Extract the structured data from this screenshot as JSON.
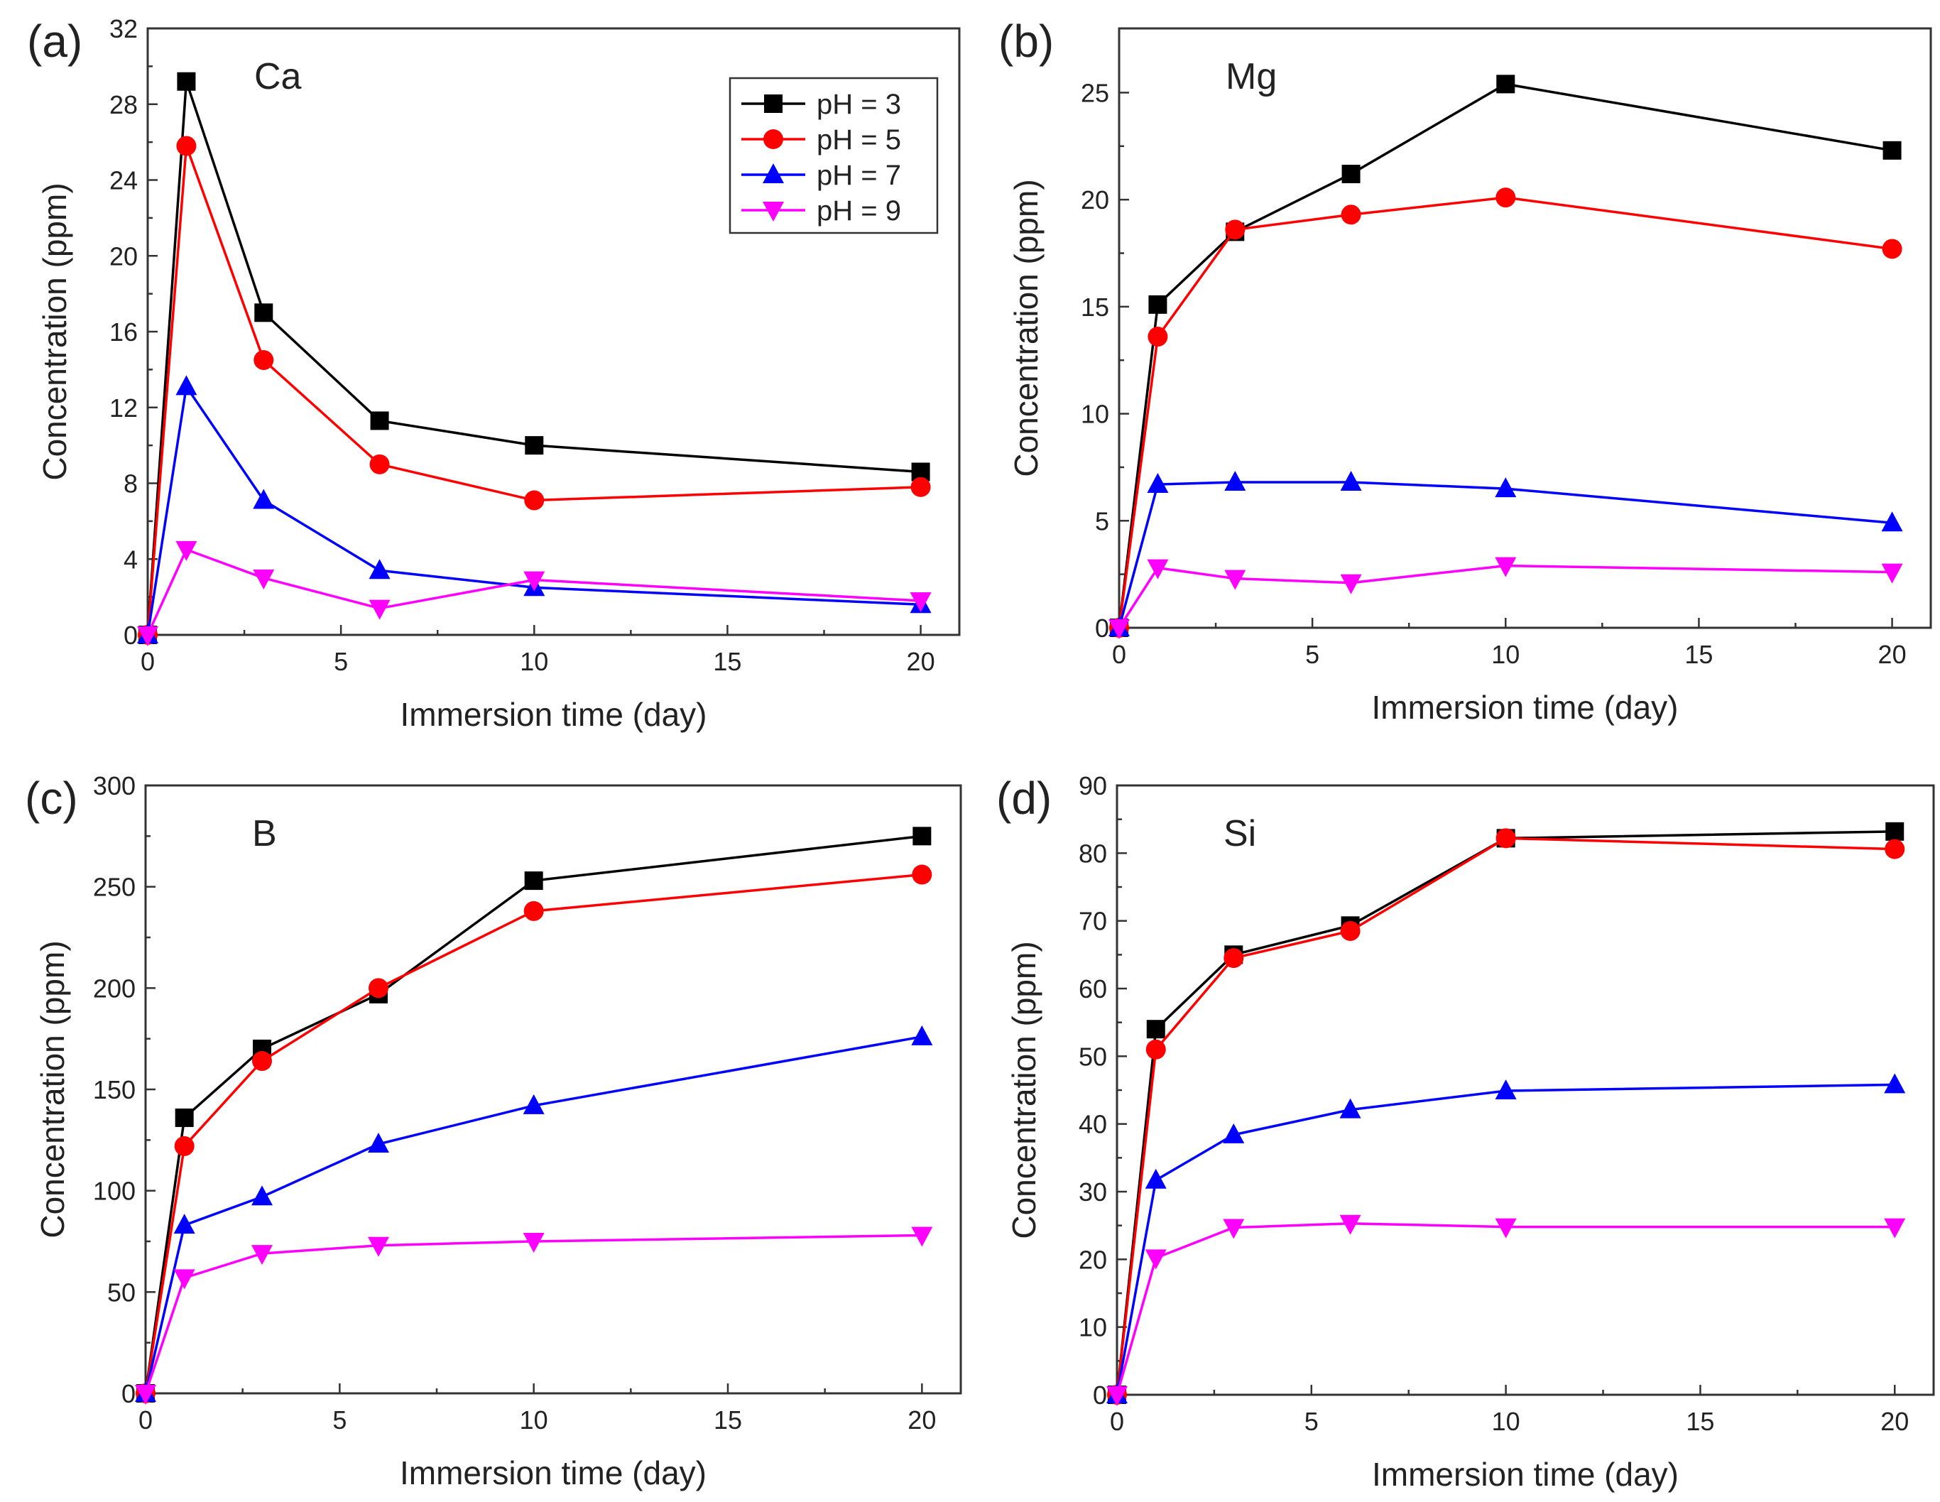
{
  "figure": {
    "legend": [
      {
        "label": "pH = 3"
      },
      {
        "label": "pH = 5"
      },
      {
        "label": "pH = 7"
      },
      {
        "label": "pH = 9"
      }
    ]
  },
  "series_styles": [
    {
      "name": "pH = 3",
      "color": "#000000",
      "marker": "square"
    },
    {
      "name": "pH = 5",
      "color": "#ff0000",
      "marker": "circle"
    },
    {
      "name": "pH = 7",
      "color": "#0000ff",
      "marker": "triangle-up"
    },
    {
      "name": "pH = 9",
      "color": "#ff00ff",
      "marker": "triangle-down"
    }
  ],
  "chart_data": [
    {
      "panel": "(a)",
      "element": "Ca",
      "type": "line",
      "xlabel": "Immersion time (day)",
      "ylabel": "Concentration (ppm)",
      "xlim": [
        0,
        21
      ],
      "ylim": [
        0,
        32
      ],
      "xticks": [
        0,
        5,
        10,
        15,
        20
      ],
      "yticks": [
        0,
        4,
        8,
        12,
        16,
        20,
        24,
        28,
        32
      ],
      "legend_position": "top-right",
      "x": [
        0,
        1,
        3,
        6,
        10,
        20
      ],
      "series": [
        {
          "name": "pH = 3",
          "values": [
            0,
            29.2,
            17.0,
            11.3,
            10.0,
            8.6
          ]
        },
        {
          "name": "pH = 5",
          "values": [
            0,
            25.8,
            14.5,
            9.0,
            7.1,
            7.8
          ]
        },
        {
          "name": "pH = 7",
          "values": [
            0,
            13.1,
            7.1,
            3.4,
            2.5,
            1.6
          ]
        },
        {
          "name": "pH = 9",
          "values": [
            0,
            4.5,
            3.0,
            1.4,
            2.9,
            1.8
          ]
        }
      ]
    },
    {
      "panel": "(b)",
      "element": "Mg",
      "type": "line",
      "xlabel": "Immersion time (day)",
      "ylabel": "Concentration (ppm)",
      "xlim": [
        0,
        21
      ],
      "ylim": [
        0,
        28
      ],
      "xticks": [
        0,
        5,
        10,
        15,
        20
      ],
      "yticks": [
        0,
        5,
        10,
        15,
        20,
        25
      ],
      "x": [
        0,
        1,
        3,
        6,
        10,
        20
      ],
      "series": [
        {
          "name": "pH = 3",
          "values": [
            0,
            15.1,
            18.5,
            21.2,
            25.4,
            22.3
          ]
        },
        {
          "name": "pH = 5",
          "values": [
            0,
            13.6,
            18.6,
            19.3,
            20.1,
            17.7
          ]
        },
        {
          "name": "pH = 7",
          "values": [
            0,
            6.7,
            6.8,
            6.8,
            6.5,
            4.9
          ]
        },
        {
          "name": "pH = 9",
          "values": [
            0,
            2.8,
            2.3,
            2.1,
            2.9,
            2.6
          ]
        }
      ]
    },
    {
      "panel": "(c)",
      "element": "B",
      "type": "line",
      "xlabel": "Immersion time (day)",
      "ylabel": "Concentration (ppm)",
      "xlim": [
        0,
        21
      ],
      "ylim": [
        0,
        300
      ],
      "xticks": [
        0,
        5,
        10,
        15,
        20
      ],
      "yticks": [
        0,
        50,
        100,
        150,
        200,
        250,
        300
      ],
      "x": [
        0,
        1,
        3,
        6,
        10,
        20
      ],
      "series": [
        {
          "name": "pH = 3",
          "values": [
            0,
            136,
            170,
            197,
            253,
            275
          ]
        },
        {
          "name": "pH = 5",
          "values": [
            0,
            122,
            164,
            200,
            238,
            256
          ]
        },
        {
          "name": "pH = 7",
          "values": [
            0,
            83,
            97,
            123,
            142,
            176
          ]
        },
        {
          "name": "pH = 9",
          "values": [
            0,
            57,
            69,
            73,
            75,
            78
          ]
        }
      ]
    },
    {
      "panel": "(d)",
      "element": "Si",
      "type": "line",
      "xlabel": "Immersion time (day)",
      "ylabel": "Concentration (ppm)",
      "xlim": [
        0,
        21
      ],
      "ylim": [
        0,
        90
      ],
      "xticks": [
        0,
        5,
        10,
        15,
        20
      ],
      "yticks": [
        0,
        10,
        20,
        30,
        40,
        50,
        60,
        70,
        80,
        90
      ],
      "x": [
        0,
        1,
        3,
        6,
        10,
        20
      ],
      "series": [
        {
          "name": "pH = 3",
          "values": [
            0,
            54,
            65,
            69.3,
            82.2,
            83.2
          ]
        },
        {
          "name": "pH = 5",
          "values": [
            0,
            51,
            64.5,
            68.5,
            82.2,
            80.6
          ]
        },
        {
          "name": "pH = 7",
          "values": [
            0,
            31.7,
            38.4,
            42.1,
            44.9,
            45.8
          ]
        },
        {
          "name": "pH = 9",
          "values": [
            0,
            20.2,
            24.7,
            25.3,
            24.8,
            24.8
          ]
        }
      ]
    }
  ]
}
